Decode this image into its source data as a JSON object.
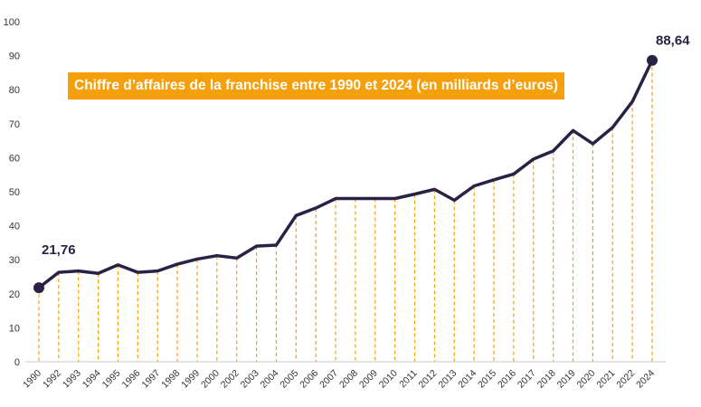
{
  "chart_data": {
    "type": "line",
    "title": "Chiffre d’affaires de la franchise entre 1990 et 2024 (en milliards d’euros)",
    "xlabel": "",
    "ylabel": "",
    "ylim": [
      0,
      100
    ],
    "yticks": [
      "0",
      "10",
      "20",
      "30",
      "40",
      "50",
      "60",
      "70",
      "80",
      "90",
      "100"
    ],
    "grid": false,
    "categories": [
      "1990",
      "1992",
      "1993",
      "1994",
      "1995",
      "1996",
      "1997",
      "1998",
      "1999",
      "2000",
      "2002",
      "2003",
      "2004",
      "2005",
      "2006",
      "2007",
      "2008",
      "2009",
      "2010",
      "2011",
      "2012",
      "2013",
      "2014",
      "2015",
      "2016",
      "2017",
      "2018",
      "2019",
      "2020",
      "2021",
      "2022",
      "2024"
    ],
    "values": [
      21.76,
      26.3,
      26.7,
      26.0,
      28.5,
      26.3,
      26.7,
      28.7,
      30.2,
      31.2,
      30.5,
      34.0,
      34.3,
      43.0,
      45.2,
      48.0,
      48.0,
      48.0,
      48.0,
      49.3,
      50.7,
      47.5,
      51.7,
      53.5,
      55.2,
      59.6,
      62.0,
      68.0,
      64.1,
      68.9,
      76.5,
      88.64
    ],
    "data_labels": [
      {
        "index": 0,
        "text": "21,76"
      },
      {
        "index": 31,
        "text": "88,64"
      }
    ],
    "colors": {
      "line": "#2b2145",
      "drop_lines": "#f5a00b",
      "title_box": "#f5a00b",
      "title_text": "#ffffff",
      "axis": "#c8c8c8"
    }
  }
}
